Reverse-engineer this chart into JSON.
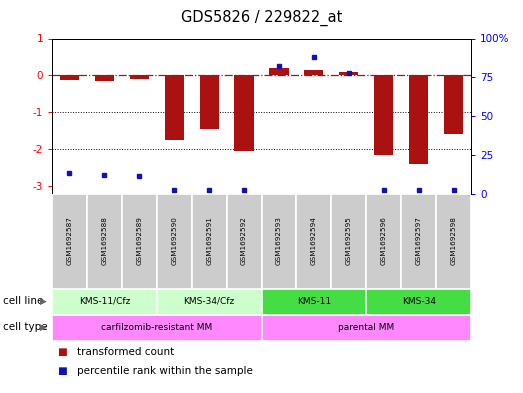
{
  "title": "GDS5826 / 229822_at",
  "samples": [
    "GSM1692587",
    "GSM1692588",
    "GSM1692589",
    "GSM1692590",
    "GSM1692591",
    "GSM1692592",
    "GSM1692593",
    "GSM1692594",
    "GSM1692595",
    "GSM1692596",
    "GSM1692597",
    "GSM1692598"
  ],
  "transformed_count": [
    -0.12,
    -0.15,
    -0.1,
    -1.75,
    -1.45,
    -2.05,
    0.2,
    0.15,
    0.1,
    -2.15,
    -2.4,
    -1.6
  ],
  "percentile_rank": [
    13,
    12,
    11,
    2,
    2,
    2,
    82,
    88,
    78,
    2,
    2,
    2
  ],
  "ylim_left": [
    -3.2,
    1.0
  ],
  "ylim_right": [
    0,
    100
  ],
  "cell_line_groups": [
    {
      "label": "KMS-11/Cfz",
      "start": 0,
      "end": 3,
      "color_light": "#ccffcc"
    },
    {
      "label": "KMS-34/Cfz",
      "start": 3,
      "end": 6,
      "color_light": "#ccffcc"
    },
    {
      "label": "KMS-11",
      "start": 6,
      "end": 9,
      "color_dark": "#55ee55"
    },
    {
      "label": "KMS-34",
      "start": 9,
      "end": 12,
      "color_dark": "#55ee55"
    }
  ],
  "cell_line_colors": [
    "#ccffcc",
    "#ccffcc",
    "#44dd44",
    "#44dd44"
  ],
  "cell_type_color": "#ff88ff",
  "cell_type_groups": [
    {
      "label": "carfilzomib-resistant MM",
      "start": 0,
      "end": 6
    },
    {
      "label": "parental MM",
      "start": 6,
      "end": 12
    }
  ],
  "bar_color": "#aa1111",
  "dot_color": "#1111bb",
  "dotted_lines": [
    -1.0,
    -2.0
  ],
  "left_yticks": [
    -3,
    -2,
    -1,
    0,
    1
  ],
  "left_yticklabels": [
    "-3",
    "-2",
    "-1",
    "0",
    "1"
  ],
  "right_yticks": [
    0,
    25,
    50,
    75,
    100
  ],
  "right_yticklabels": [
    "0",
    "25",
    "50",
    "75",
    "100%"
  ],
  "sample_box_color": "#cccccc",
  "legend_items": [
    {
      "color": "#aa1111",
      "label": "transformed count"
    },
    {
      "color": "#1111bb",
      "label": "percentile rank within the sample"
    }
  ]
}
